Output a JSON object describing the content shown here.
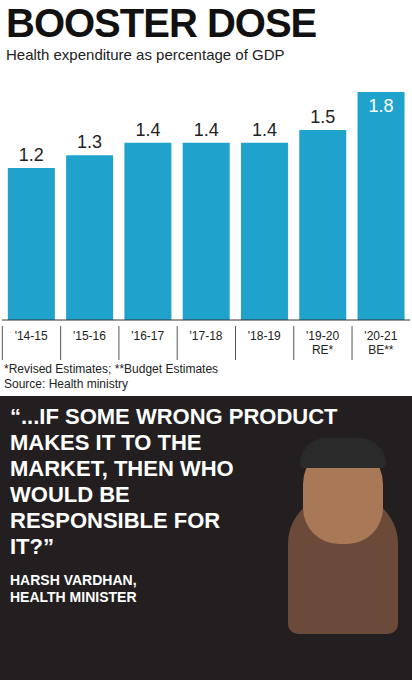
{
  "chart_data": {
    "type": "bar",
    "title": "BOOSTER DOSE",
    "subtitle": "Health expenditure as percentage of GDP",
    "categories": [
      "'14-15",
      "'15-16",
      "'16-17",
      "'17-18",
      "'18-19",
      "'19-20 RE*",
      "'20-21 BE**"
    ],
    "values": [
      1.2,
      1.3,
      1.4,
      1.4,
      1.4,
      1.5,
      1.8
    ],
    "color": "#1fa3cc",
    "data_labels": true,
    "tick_labels": "x",
    "grid": false,
    "annotations": [
      "*Revised Estimates; **Budget Estimates",
      "Source: Health ministry"
    ]
  },
  "quote": {
    "text": "“...IF SOME WRONG PRODUCT MAKES IT TO THE MARKET, THEN WHO WOULD BE RESPONSIBLE FOR IT?”",
    "speaker": "HARSH VARDHAN,",
    "speaker_title": "HEALTH MINISTER"
  }
}
